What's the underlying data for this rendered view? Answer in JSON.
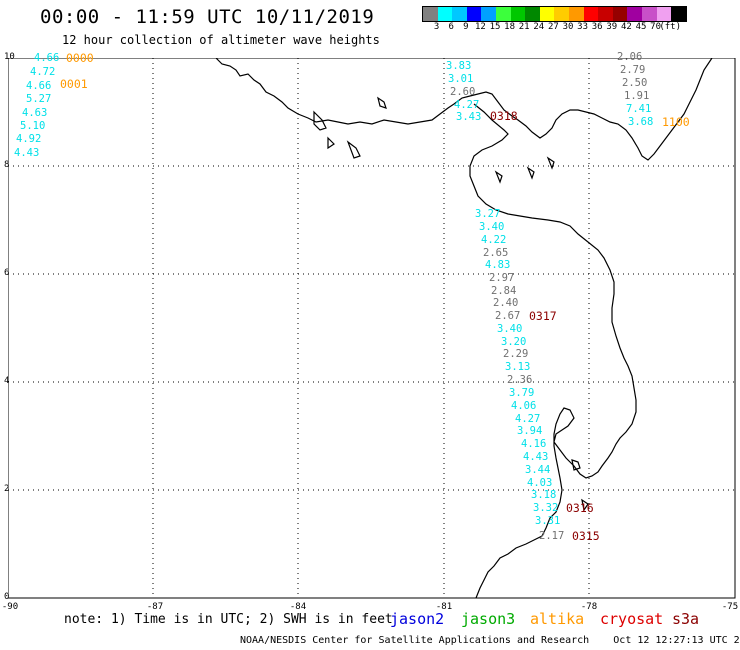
{
  "title": "00:00 - 11:59 UTC 10/11/2019",
  "subtitle": "12 hour collection of altimeter wave heights",
  "colorbar": {
    "colors": [
      "#808080",
      "#00ffff",
      "#00c8ff",
      "#0000ff",
      "#00a0ff",
      "#3cff3c",
      "#00c800",
      "#008800",
      "#ffff00",
      "#ffcc00",
      "#ff9900",
      "#ff0000",
      "#c80000",
      "#960000",
      "#a000a0",
      "#c850c8",
      "#f0a0f0",
      "#000000"
    ],
    "labels": [
      "3",
      "6",
      "9",
      "12",
      "15",
      "18",
      "21",
      "24",
      "27",
      "30",
      "33",
      "36",
      "39",
      "42",
      "45",
      "70",
      "(ft)"
    ]
  },
  "axes": {
    "x_ticks": [
      "-90",
      "-87",
      "-84",
      "-81",
      "-78",
      "-75"
    ],
    "y_ticks": [
      "10",
      "8",
      "6",
      "4",
      "2",
      "0"
    ]
  },
  "colors": {
    "jason3_cyan": "#00e0e8",
    "gray_track": "#707070",
    "altika_orange": "#ff9900",
    "cryosat_darkred": "#8b0000",
    "jason2_blue": "#0000dd",
    "jason3_green": "#00aa00"
  },
  "passes": [
    {
      "id": "west",
      "labels": [
        {
          "v": "4.66",
          "c": "cyan"
        },
        {
          "v": "4.72",
          "c": "cyan"
        },
        {
          "v": "4.66",
          "c": "cyan"
        },
        {
          "v": "5.27",
          "c": "cyan"
        },
        {
          "v": "4.63",
          "c": "cyan"
        },
        {
          "v": "5.10",
          "c": "cyan"
        },
        {
          "v": "4.92",
          "c": "cyan"
        },
        {
          "v": "4.43",
          "c": "cyan"
        }
      ]
    },
    {
      "id": "north-mid",
      "labels": [
        {
          "v": "3.83",
          "c": "cyan"
        },
        {
          "v": "3.01",
          "c": "cyan"
        },
        {
          "v": "2.60",
          "c": "gray"
        },
        {
          "v": "4.27",
          "c": "cyan"
        },
        {
          "v": "3.43",
          "c": "cyan"
        }
      ]
    },
    {
      "id": "north-east",
      "labels": [
        {
          "v": "2.06",
          "c": "gray"
        },
        {
          "v": "2.79",
          "c": "gray"
        },
        {
          "v": "2.50",
          "c": "gray"
        },
        {
          "v": "1.91",
          "c": "gray"
        },
        {
          "v": "7.41",
          "c": "cyan"
        },
        {
          "v": "3.68",
          "c": "cyan"
        }
      ]
    },
    {
      "id": "main",
      "labels": [
        {
          "v": "3.27",
          "c": "cyan"
        },
        {
          "v": "3.40",
          "c": "cyan"
        },
        {
          "v": "4.22",
          "c": "cyan"
        },
        {
          "v": "2.65",
          "c": "gray"
        },
        {
          "v": "4.83",
          "c": "cyan"
        },
        {
          "v": "2.97",
          "c": "gray"
        },
        {
          "v": "2.84",
          "c": "gray"
        },
        {
          "v": "2.40",
          "c": "gray"
        },
        {
          "v": "2.67",
          "c": "gray"
        },
        {
          "v": "3.40",
          "c": "cyan"
        },
        {
          "v": "3.20",
          "c": "cyan"
        },
        {
          "v": "2.29",
          "c": "gray"
        },
        {
          "v": "3.13",
          "c": "cyan"
        },
        {
          "v": "2.36",
          "c": "gray"
        },
        {
          "v": "3.79",
          "c": "cyan"
        },
        {
          "v": "4.06",
          "c": "cyan"
        },
        {
          "v": "4.27",
          "c": "cyan"
        },
        {
          "v": "3.94",
          "c": "cyan"
        },
        {
          "v": "4.16",
          "c": "cyan"
        },
        {
          "v": "4.43",
          "c": "cyan"
        },
        {
          "v": "3.44",
          "c": "cyan"
        },
        {
          "v": "4.03",
          "c": "cyan"
        },
        {
          "v": "3.18",
          "c": "cyan"
        },
        {
          "v": "3.32",
          "c": "cyan"
        },
        {
          "v": "3.31",
          "c": "cyan"
        },
        {
          "v": "2.17",
          "c": "gray"
        }
      ]
    }
  ],
  "time_labels": [
    {
      "t": "0000",
      "c": "orange"
    },
    {
      "t": "0001",
      "c": "orange"
    },
    {
      "t": "0318",
      "c": "darkred"
    },
    {
      "t": "1100",
      "c": "orange"
    },
    {
      "t": "0317",
      "c": "darkred"
    },
    {
      "t": "0316",
      "c": "darkred"
    },
    {
      "t": "0315",
      "c": "darkred"
    }
  ],
  "note": "note: 1) Time is in UTC; 2) SWH is in feet",
  "satellites": [
    {
      "name": "jason2",
      "color": "#0000dd"
    },
    {
      "name": "jason3",
      "color": "#00aa00"
    },
    {
      "name": "altika",
      "color": "#ff9900"
    },
    {
      "name": "cryosat",
      "color": "#dd0000"
    },
    {
      "name": "s3a",
      "color": "#8b0000"
    }
  ],
  "footer": "NOAA/NESDIS Center for Satellite Applications and Research    Oct 12 12:27:13 UTC 2019"
}
